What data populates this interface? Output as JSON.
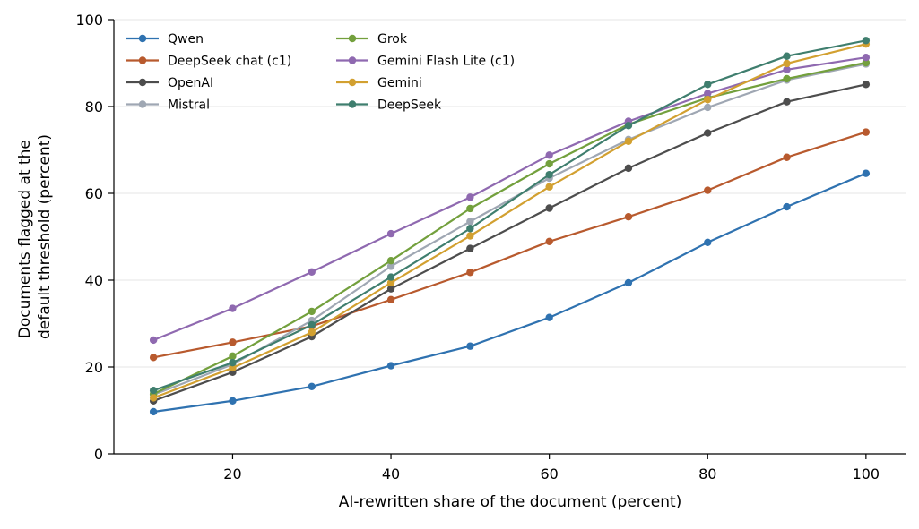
{
  "chart_data": {
    "type": "line",
    "xlabel": "AI-rewritten share of the document (percent)",
    "ylabel_lines": [
      "Documents flagged at the",
      "default threshold (percent)"
    ],
    "x": [
      10,
      20,
      30,
      40,
      50,
      60,
      70,
      80,
      90,
      100
    ],
    "xticks": [
      20,
      40,
      60,
      80,
      100
    ],
    "xlim": [
      5,
      105
    ],
    "yticks": [
      0,
      20,
      40,
      60,
      80,
      100
    ],
    "ylim": [
      0,
      100
    ],
    "grid": "horizontal",
    "legend_position": "upper-left",
    "legend_columns": 2,
    "series": [
      {
        "name": "Qwen",
        "color": "#2f72b0",
        "values": [
          9.7,
          12.2,
          15.5,
          20.3,
          24.8,
          31.4,
          39.4,
          48.7,
          56.9,
          64.6
        ]
      },
      {
        "name": "DeepSeek chat (c1)",
        "color": "#b85a2e",
        "values": [
          22.2,
          25.7,
          29.4,
          35.5,
          41.8,
          48.9,
          54.6,
          60.7,
          68.3,
          74.1
        ]
      },
      {
        "name": "OpenAI",
        "color": "#4d4d4d",
        "values": [
          12.2,
          18.8,
          27.0,
          38.0,
          47.3,
          56.6,
          65.8,
          73.9,
          81.1,
          85.1
        ]
      },
      {
        "name": "Mistral",
        "color": "#9fa7b3",
        "values": [
          13.6,
          20.6,
          30.7,
          43.2,
          53.5,
          63.5,
          72.4,
          79.8,
          86.1,
          89.8
        ]
      },
      {
        "name": "Grok",
        "color": "#73a03d",
        "values": [
          13.8,
          22.5,
          32.8,
          44.5,
          56.5,
          66.8,
          75.9,
          82.0,
          86.4,
          90.1
        ]
      },
      {
        "name": "Gemini Flash Lite (c1)",
        "color": "#8f69b0",
        "values": [
          26.2,
          33.5,
          41.9,
          50.7,
          59.1,
          68.8,
          76.6,
          83.0,
          88.5,
          91.3
        ]
      },
      {
        "name": "Gemini",
        "color": "#d2a030",
        "values": [
          12.9,
          19.8,
          28.0,
          39.4,
          50.2,
          61.5,
          72.0,
          81.6,
          89.9,
          94.4
        ]
      },
      {
        "name": "DeepSeek",
        "color": "#3f7e6e",
        "values": [
          14.6,
          21.0,
          29.7,
          40.7,
          51.9,
          64.3,
          75.6,
          85.1,
          91.6,
          95.2
        ]
      }
    ]
  }
}
